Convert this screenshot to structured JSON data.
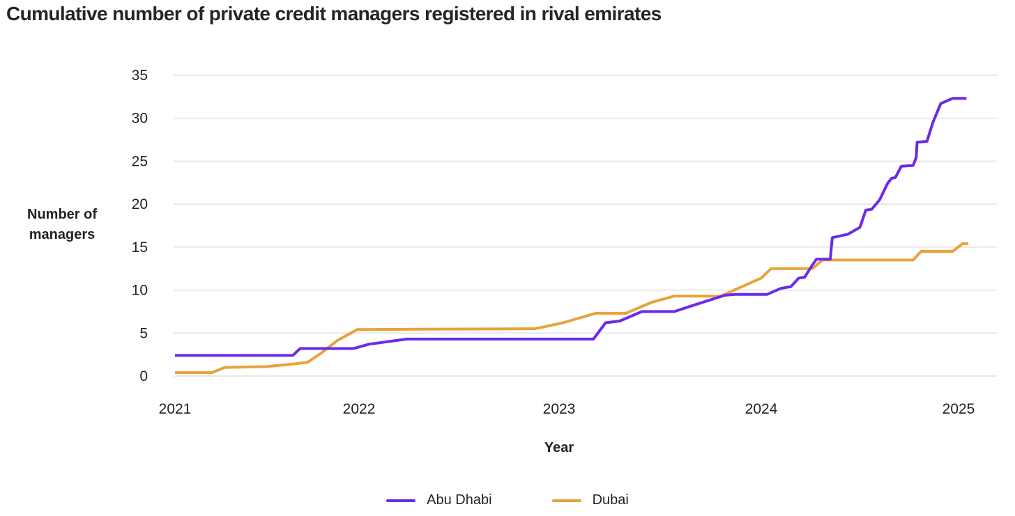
{
  "chart_data": {
    "type": "line",
    "title": "Cumulative number of private credit managers registered in rival emirates",
    "xlabel": "Year",
    "ylabel_lines": [
      "Number of",
      "managers"
    ],
    "x_ticks": [
      2021,
      2022,
      2023,
      2024,
      2025
    ],
    "y_ticks": [
      0,
      5,
      10,
      15,
      20,
      25,
      30,
      35
    ],
    "xlim": [
      2021,
      2025.2
    ],
    "ylim": [
      0,
      35
    ],
    "grid": "horizontal-only",
    "grid_color": "#e1e1e1",
    "text_color": "#1e2126",
    "legend_position": "bottom-center",
    "series": [
      {
        "name": "Abu Dhabi",
        "color": "#6b2be9",
        "points": [
          [
            2021.0,
            2.4
          ],
          [
            2021.64,
            2.4
          ],
          [
            2021.68,
            3.2
          ],
          [
            2021.97,
            3.2
          ],
          [
            2022.05,
            3.7
          ],
          [
            2022.24,
            4.3
          ],
          [
            2023.17,
            4.3
          ],
          [
            2023.23,
            6.2
          ],
          [
            2023.3,
            6.4
          ],
          [
            2023.41,
            7.5
          ],
          [
            2023.57,
            7.5
          ],
          [
            2023.66,
            8.2
          ],
          [
            2023.82,
            9.4
          ],
          [
            2023.87,
            9.5
          ],
          [
            2024.03,
            9.5
          ],
          [
            2024.1,
            10.2
          ],
          [
            2024.15,
            10.4
          ],
          [
            2024.19,
            11.4
          ],
          [
            2024.22,
            11.5
          ],
          [
            2024.25,
            12.6
          ],
          [
            2024.28,
            13.6
          ],
          [
            2024.35,
            13.6
          ],
          [
            2024.36,
            16.1
          ],
          [
            2024.44,
            16.5
          ],
          [
            2024.5,
            17.3
          ],
          [
            2024.53,
            19.3
          ],
          [
            2024.56,
            19.4
          ],
          [
            2024.6,
            20.5
          ],
          [
            2024.64,
            22.4
          ],
          [
            2024.66,
            23.0
          ],
          [
            2024.68,
            23.1
          ],
          [
            2024.71,
            24.4
          ],
          [
            2024.77,
            24.5
          ],
          [
            2024.785,
            25.4
          ],
          [
            2024.79,
            27.2
          ],
          [
            2024.84,
            27.3
          ],
          [
            2024.87,
            29.5
          ],
          [
            2024.91,
            31.7
          ],
          [
            2024.97,
            32.3
          ],
          [
            2025.04,
            32.3
          ]
        ]
      },
      {
        "name": "Dubai",
        "color": "#e8a33b",
        "points": [
          [
            2021.0,
            0.4
          ],
          [
            2021.2,
            0.4
          ],
          [
            2021.27,
            1.0
          ],
          [
            2021.5,
            1.1
          ],
          [
            2021.64,
            1.4
          ],
          [
            2021.72,
            1.6
          ],
          [
            2021.79,
            2.6
          ],
          [
            2021.88,
            4.1
          ],
          [
            2021.99,
            5.4
          ],
          [
            2022.3,
            5.45
          ],
          [
            2022.88,
            5.5
          ],
          [
            2023.02,
            6.2
          ],
          [
            2023.18,
            7.3
          ],
          [
            2023.33,
            7.3
          ],
          [
            2023.46,
            8.6
          ],
          [
            2023.57,
            9.3
          ],
          [
            2023.8,
            9.3
          ],
          [
            2024.0,
            11.4
          ],
          [
            2024.05,
            12.5
          ],
          [
            2024.26,
            12.5
          ],
          [
            2024.31,
            13.5
          ],
          [
            2024.77,
            13.5
          ],
          [
            2024.81,
            14.5
          ],
          [
            2024.97,
            14.5
          ],
          [
            2025.02,
            15.4
          ],
          [
            2025.05,
            15.4
          ]
        ]
      }
    ]
  }
}
